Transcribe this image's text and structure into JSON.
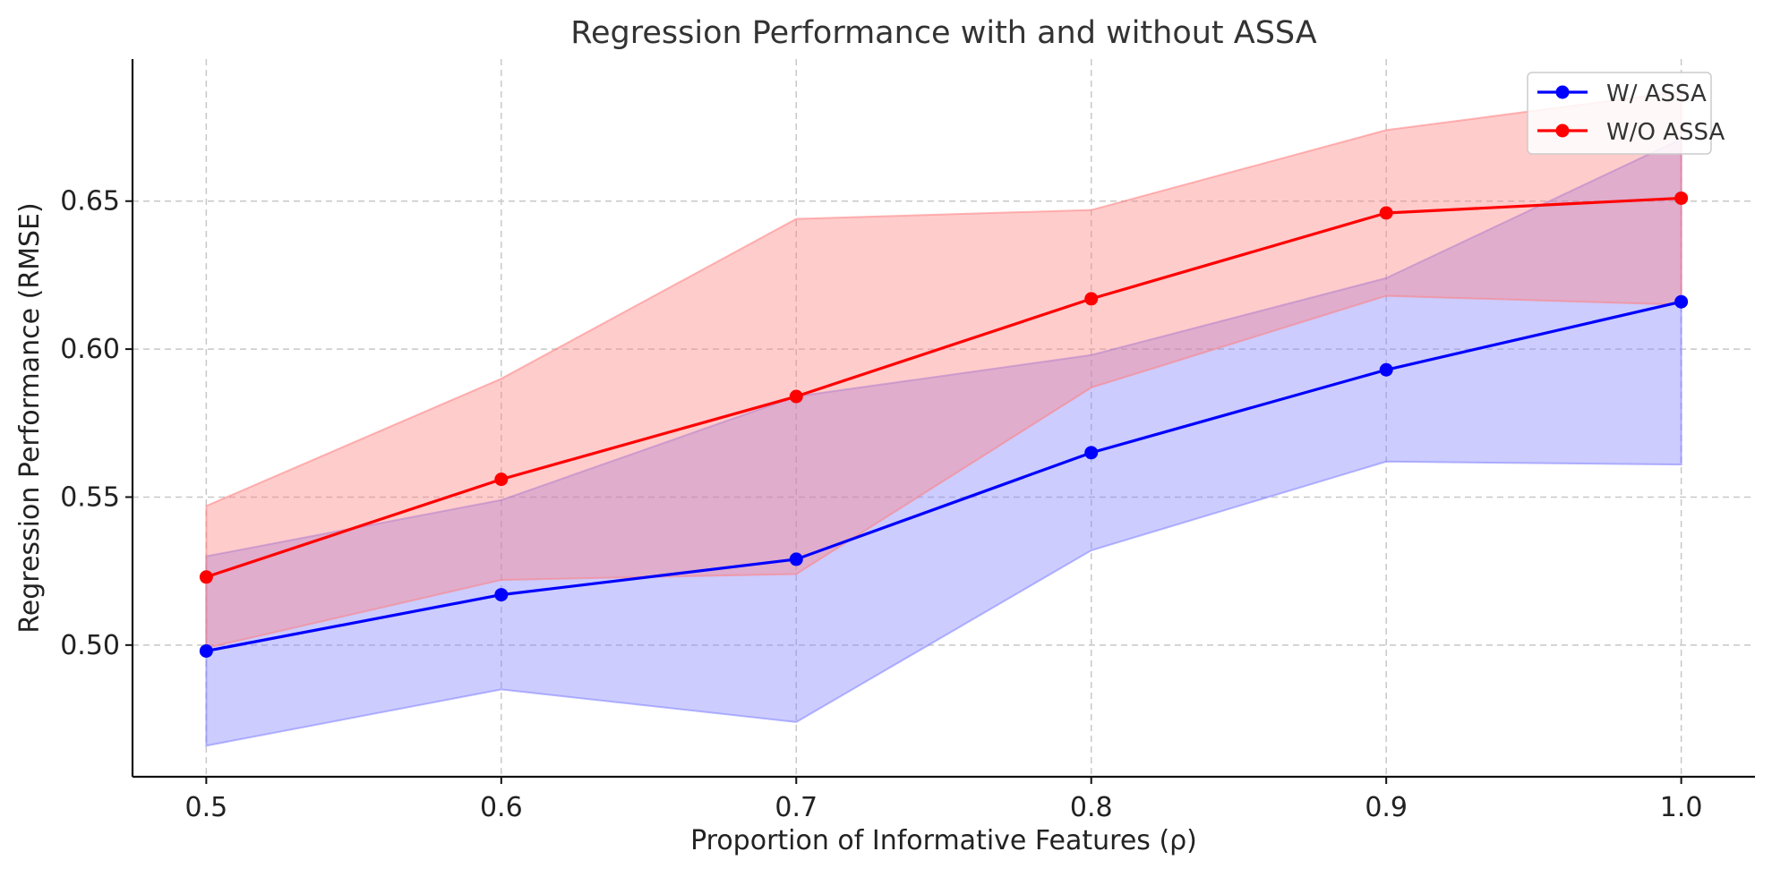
{
  "chart_data": {
    "type": "line",
    "title": "Regression Performance with and without ASSA",
    "xlabel": "Proportion of Informative Features (ρ)",
    "ylabel": "Regression Performance (RMSE)",
    "x": [
      0.5,
      0.6,
      0.7,
      0.8,
      0.9,
      1.0
    ],
    "x_tick_labels": [
      "0.5",
      "0.6",
      "0.7",
      "0.8",
      "0.9",
      "1.0"
    ],
    "y_ticks": [
      0.5,
      0.55,
      0.6,
      0.65
    ],
    "y_tick_labels": [
      "0.50",
      "0.55",
      "0.60",
      "0.65"
    ],
    "xlim": [
      0.475,
      1.025
    ],
    "ylim": [
      0.4555,
      0.698
    ],
    "grid": true,
    "legend_position": "top-right",
    "series": [
      {
        "name": "W/ ASSA",
        "color": "#0000ff",
        "band_color": "#8080ff",
        "values": [
          0.498,
          0.517,
          0.529,
          0.565,
          0.593,
          0.616
        ],
        "lower": [
          0.466,
          0.485,
          0.474,
          0.532,
          0.562,
          0.561
        ],
        "upper": [
          0.53,
          0.549,
          0.584,
          0.598,
          0.624,
          0.671
        ]
      },
      {
        "name": "W/O ASSA",
        "color": "#ff0000",
        "band_color": "#ff8080",
        "values": [
          0.523,
          0.556,
          0.584,
          0.617,
          0.646,
          0.651
        ],
        "lower": [
          0.499,
          0.522,
          0.524,
          0.587,
          0.618,
          0.615
        ],
        "upper": [
          0.547,
          0.59,
          0.644,
          0.647,
          0.674,
          0.687
        ]
      }
    ]
  }
}
